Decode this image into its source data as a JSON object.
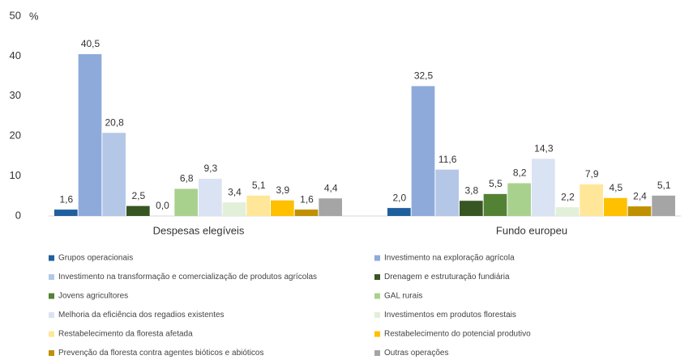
{
  "chart_data": {
    "type": "bar",
    "y_label": "%",
    "categories": [
      "Despesas elegíveis",
      "Fundo europeu"
    ],
    "ylim": [
      0,
      50
    ],
    "yticks": [
      0,
      10,
      20,
      30,
      40,
      50
    ],
    "series": [
      {
        "name": "Grupos operacionais",
        "color": "#1f5f9e",
        "values": [
          1.6,
          2.0
        ],
        "value_labels": [
          "1,6",
          "2,0"
        ]
      },
      {
        "name": "Investimento na exploração agrícola",
        "color": "#8eaadb",
        "values": [
          40.5,
          32.5
        ],
        "value_labels": [
          "40,5",
          "32,5"
        ]
      },
      {
        "name": "Investimento na transformação e comercialização de produtos agrícolas",
        "color": "#b4c7e7",
        "values": [
          20.8,
          11.6
        ],
        "value_labels": [
          "20,8",
          "11,6"
        ]
      },
      {
        "name": "Drenagem e estruturação fundiária",
        "color": "#375623",
        "values": [
          2.5,
          3.8
        ],
        "value_labels": [
          "2,5",
          "3,8"
        ]
      },
      {
        "name": "Jovens agricultores",
        "color": "#548235",
        "values": [
          0.0,
          5.5
        ],
        "value_labels": [
          "0,0",
          "5,5"
        ]
      },
      {
        "name": "GAL rurais",
        "color": "#a9d18e",
        "values": [
          6.8,
          8.2
        ],
        "value_labels": [
          "6,8",
          "8,2"
        ]
      },
      {
        "name": "Melhoria da eficiência dos regadios existentes",
        "color": "#dae3f3",
        "values": [
          9.3,
          14.3
        ],
        "value_labels": [
          "9,3",
          "14,3"
        ]
      },
      {
        "name": "Investimentos em produtos florestais",
        "color": "#e2f0d9",
        "values": [
          3.4,
          2.2
        ],
        "value_labels": [
          "3,4",
          "2,2"
        ]
      },
      {
        "name": "Restabelecimento da floresta afetada",
        "color": "#ffe699",
        "values": [
          5.1,
          7.9
        ],
        "value_labels": [
          "5,1",
          "7,9"
        ]
      },
      {
        "name": "Restabelecimento do potencial produtivo",
        "color": "#ffc000",
        "values": [
          3.9,
          4.5
        ],
        "value_labels": [
          "3,9",
          "4,5"
        ]
      },
      {
        "name": "Prevenção da floresta contra agentes bióticos e abióticos",
        "color": "#bf9000",
        "values": [
          1.6,
          2.4
        ],
        "value_labels": [
          "1,6",
          "2,4"
        ]
      },
      {
        "name": "Outras operações",
        "color": "#a5a5a5",
        "values": [
          4.4,
          5.1
        ],
        "value_labels": [
          "4,4",
          "5,1"
        ]
      }
    ]
  }
}
